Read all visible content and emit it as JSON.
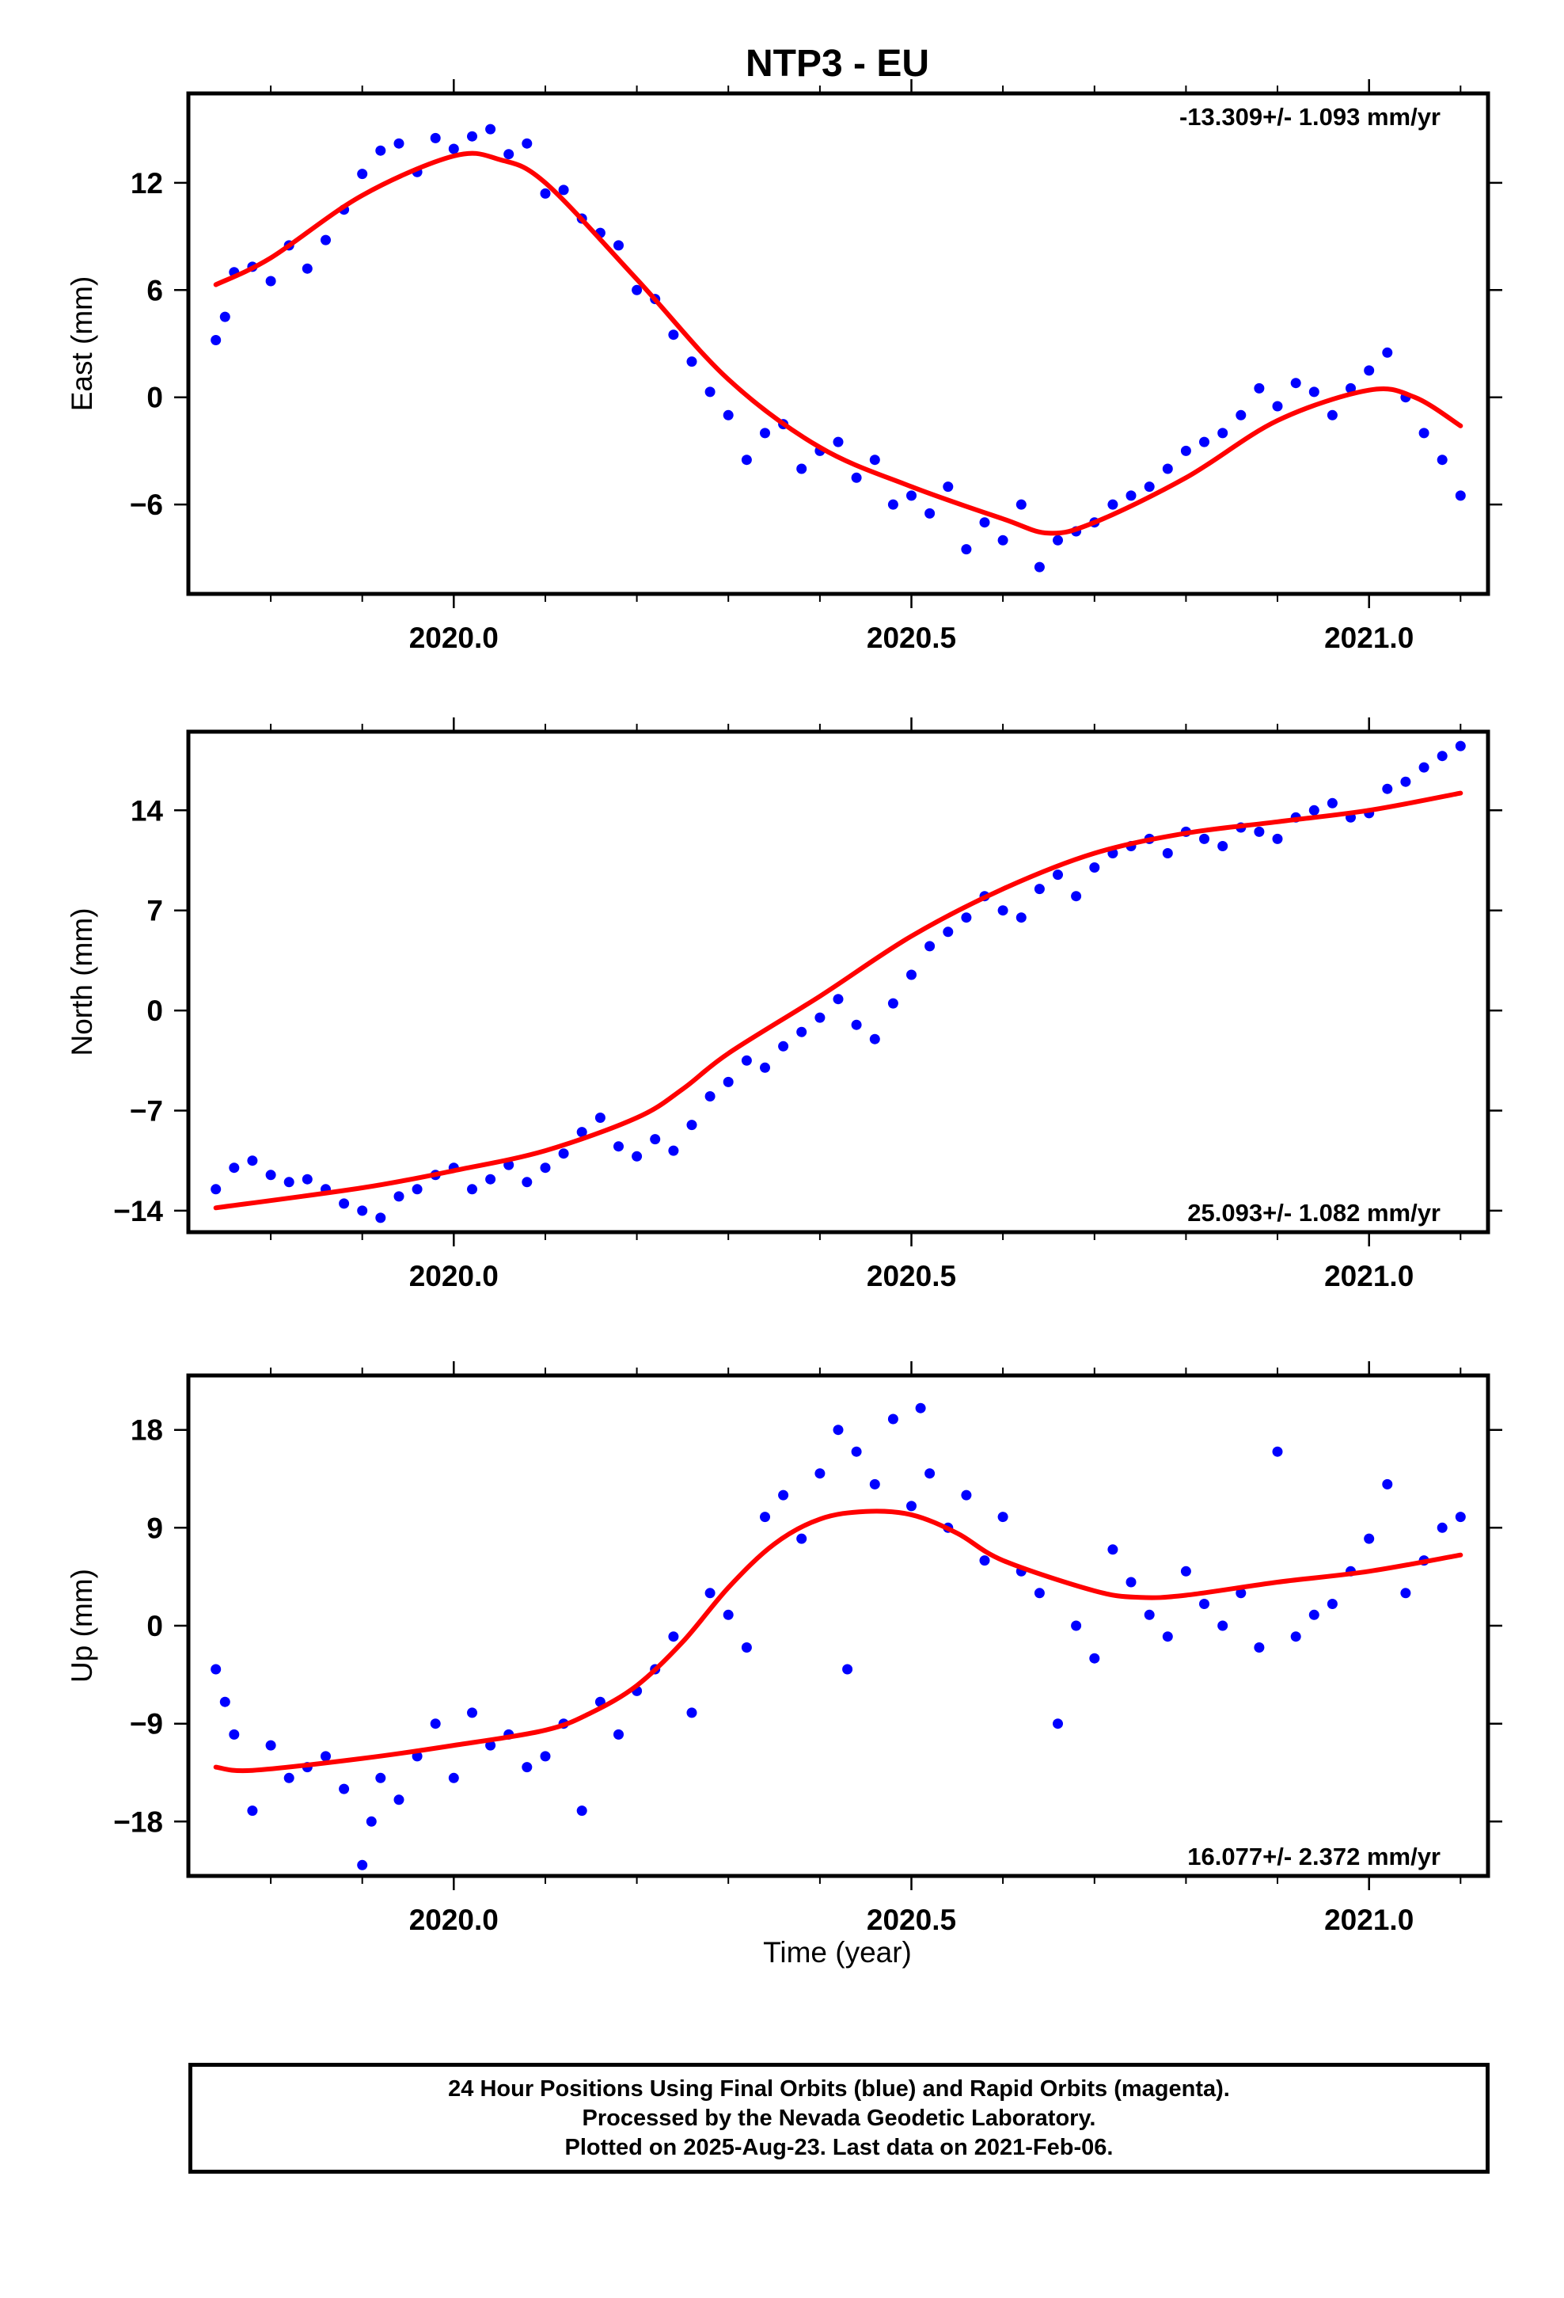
{
  "title": "NTP3 - EU",
  "xlabel": "Time (year)",
  "colors": {
    "points": "#0000ff",
    "fit": "#ff0000",
    "axes": "#000000"
  },
  "footer": {
    "line1": "24 Hour Positions Using Final Orbits (blue) and Rapid Orbits (magenta).",
    "line2": "Processed by the Nevada Geodetic Laboratory.",
    "line3": "Plotted on 2025-Aug-23. Last data on 2021-Feb-06."
  },
  "chart_data": [
    {
      "type": "scatter",
      "ylabel": "East (mm)",
      "rate_label": "-13.309+/- 1.093 mm/yr",
      "rate_position": "top-right",
      "xlim": [
        2019.71,
        2021.13
      ],
      "ylim": [
        -11,
        17
      ],
      "xticks": [
        2020.0,
        2020.5,
        2021.0
      ],
      "xtick_labels": [
        "2020.0",
        "2020.5",
        "2021.0"
      ],
      "yticks": [
        12,
        6,
        0,
        -6
      ],
      "ytick_labels": [
        "12",
        "6",
        "0",
        "−6"
      ],
      "fit": {
        "x": [
          2019.74,
          2019.8,
          2019.9,
          2020.0,
          2020.05,
          2020.1,
          2020.2,
          2020.3,
          2020.4,
          2020.5,
          2020.6,
          2020.65,
          2020.7,
          2020.8,
          2020.9,
          2021.0,
          2021.05,
          2021.1
        ],
        "y": [
          6.3,
          7.8,
          11.3,
          13.5,
          13.3,
          12.0,
          6.6,
          1.0,
          -2.8,
          -5.0,
          -6.8,
          -7.6,
          -7.0,
          -4.5,
          -1.3,
          0.4,
          0.0,
          -1.6
        ]
      },
      "points": {
        "x": [
          2019.74,
          2019.75,
          2019.76,
          2019.78,
          2019.8,
          2019.82,
          2019.84,
          2019.86,
          2019.88,
          2019.9,
          2019.92,
          2019.94,
          2019.96,
          2019.98,
          2020.0,
          2020.02,
          2020.04,
          2020.06,
          2020.08,
          2020.1,
          2020.12,
          2020.14,
          2020.16,
          2020.18,
          2020.2,
          2020.22,
          2020.24,
          2020.26,
          2020.28,
          2020.3,
          2020.32,
          2020.34,
          2020.36,
          2020.38,
          2020.4,
          2020.42,
          2020.44,
          2020.46,
          2020.48,
          2020.5,
          2020.52,
          2020.54,
          2020.56,
          2020.58,
          2020.6,
          2020.62,
          2020.64,
          2020.66,
          2020.68,
          2020.7,
          2020.72,
          2020.74,
          2020.76,
          2020.78,
          2020.8,
          2020.82,
          2020.84,
          2020.86,
          2020.88,
          2020.9,
          2020.92,
          2020.94,
          2020.96,
          2020.98,
          2021.0,
          2021.02,
          2021.04,
          2021.06,
          2021.08,
          2021.1
        ],
        "y": [
          3.2,
          4.5,
          7.0,
          7.3,
          6.5,
          8.5,
          7.2,
          8.8,
          10.5,
          12.5,
          13.8,
          14.2,
          12.6,
          14.5,
          13.9,
          14.6,
          15.0,
          13.6,
          14.2,
          11.4,
          11.6,
          10.0,
          9.2,
          8.5,
          6.0,
          5.5,
          3.5,
          2.0,
          0.3,
          -1.0,
          -3.5,
          -2.0,
          -1.5,
          -4.0,
          -3.0,
          -2.5,
          -4.5,
          -3.5,
          -6.0,
          -5.5,
          -6.5,
          -5.0,
          -8.5,
          -7.0,
          -8.0,
          -6.0,
          -9.5,
          -8.0,
          -7.5,
          -7.0,
          -6.0,
          -5.5,
          -5.0,
          -4.0,
          -3.0,
          -2.5,
          -2.0,
          -1.0,
          0.5,
          -0.5,
          0.8,
          0.3,
          -1.0,
          0.5,
          1.5,
          2.5,
          0.0,
          -2.0,
          -3.5,
          -5.5
        ]
      }
    },
    {
      "type": "scatter",
      "ylabel": "North (mm)",
      "rate_label": "25.093+/- 1.082 mm/yr",
      "rate_position": "bottom-right",
      "xlim": [
        2019.71,
        2021.13
      ],
      "ylim": [
        -15.5,
        19.5
      ],
      "xticks": [
        2020.0,
        2020.5,
        2021.0
      ],
      "xtick_labels": [
        "2020.0",
        "2020.5",
        "2021.0"
      ],
      "yticks": [
        14,
        7,
        0,
        -7,
        -14
      ],
      "ytick_labels": [
        "14",
        "7",
        "0",
        "−7",
        "−14"
      ],
      "fit": {
        "x": [
          2019.74,
          2019.9,
          2020.0,
          2020.1,
          2020.2,
          2020.25,
          2020.3,
          2020.4,
          2020.5,
          2020.6,
          2020.7,
          2020.8,
          2020.9,
          2021.0,
          2021.1
        ],
        "y": [
          -13.8,
          -12.4,
          -11.2,
          -9.8,
          -7.5,
          -5.5,
          -3.0,
          1.0,
          5.2,
          8.5,
          11.0,
          12.4,
          13.2,
          14.0,
          15.2
        ]
      },
      "points": {
        "x": [
          2019.74,
          2019.76,
          2019.78,
          2019.8,
          2019.82,
          2019.84,
          2019.86,
          2019.88,
          2019.9,
          2019.92,
          2019.94,
          2019.96,
          2019.98,
          2020.0,
          2020.02,
          2020.04,
          2020.06,
          2020.08,
          2020.1,
          2020.12,
          2020.14,
          2020.16,
          2020.18,
          2020.2,
          2020.22,
          2020.24,
          2020.26,
          2020.28,
          2020.3,
          2020.32,
          2020.34,
          2020.36,
          2020.38,
          2020.4,
          2020.42,
          2020.44,
          2020.46,
          2020.48,
          2020.5,
          2020.52,
          2020.54,
          2020.56,
          2020.58,
          2020.6,
          2020.62,
          2020.64,
          2020.66,
          2020.68,
          2020.7,
          2020.72,
          2020.74,
          2020.76,
          2020.78,
          2020.8,
          2020.82,
          2020.84,
          2020.86,
          2020.88,
          2020.9,
          2020.92,
          2020.94,
          2020.96,
          2020.98,
          2021.0,
          2021.02,
          2021.04,
          2021.06,
          2021.08,
          2021.1
        ],
        "y": [
          -12.5,
          -11.0,
          -10.5,
          -11.5,
          -12.0,
          -11.8,
          -12.5,
          -13.5,
          -14.0,
          -14.5,
          -13.0,
          -12.5,
          -11.5,
          -11.0,
          -12.5,
          -11.8,
          -10.8,
          -12.0,
          -11.0,
          -10.0,
          -8.5,
          -7.5,
          -9.5,
          -10.2,
          -9.0,
          -9.8,
          -8.0,
          -6.0,
          -5.0,
          -3.5,
          -4.0,
          -2.5,
          -1.5,
          -0.5,
          0.8,
          -1.0,
          -2.0,
          0.5,
          2.5,
          4.5,
          5.5,
          6.5,
          8.0,
          7.0,
          6.5,
          8.5,
          9.5,
          8.0,
          10.0,
          11.0,
          11.5,
          12.0,
          11.0,
          12.5,
          12.0,
          11.5,
          12.8,
          12.5,
          12.0,
          13.5,
          14.0,
          14.5,
          13.5,
          13.8,
          15.5,
          16.0,
          17.0,
          17.8,
          18.5
        ]
      }
    },
    {
      "type": "scatter",
      "ylabel": "Up (mm)",
      "rate_label": "16.077+/- 2.372 mm/yr",
      "rate_position": "bottom-right",
      "xlim": [
        2019.71,
        2021.13
      ],
      "ylim": [
        -23,
        23
      ],
      "xticks": [
        2020.0,
        2020.5,
        2021.0
      ],
      "xtick_labels": [
        "2020.0",
        "2020.5",
        "2021.0"
      ],
      "yticks": [
        18,
        9,
        0,
        -9,
        -18
      ],
      "ytick_labels": [
        "18",
        "9",
        "0",
        "−9",
        "−18"
      ],
      "fit": {
        "x": [
          2019.74,
          2019.78,
          2019.9,
          2020.0,
          2020.1,
          2020.15,
          2020.2,
          2020.25,
          2020.3,
          2020.35,
          2020.4,
          2020.45,
          2020.5,
          2020.55,
          2020.6,
          2020.7,
          2020.75,
          2020.8,
          2020.9,
          2021.0,
          2021.1
        ],
        "y": [
          -13,
          -13.3,
          -12.2,
          -11,
          -9.6,
          -8,
          -5.5,
          -1.5,
          3.5,
          7.5,
          9.8,
          10.5,
          10.2,
          8.5,
          6,
          3.2,
          2.6,
          2.8,
          4,
          5,
          6.5
        ]
      },
      "points": {
        "x": [
          2019.74,
          2019.75,
          2019.76,
          2019.78,
          2019.8,
          2019.82,
          2019.84,
          2019.86,
          2019.88,
          2019.9,
          2019.91,
          2019.92,
          2019.94,
          2019.96,
          2019.98,
          2020.0,
          2020.02,
          2020.04,
          2020.06,
          2020.08,
          2020.1,
          2020.12,
          2020.14,
          2020.16,
          2020.18,
          2020.2,
          2020.22,
          2020.24,
          2020.26,
          2020.28,
          2020.3,
          2020.32,
          2020.34,
          2020.36,
          2020.38,
          2020.4,
          2020.42,
          2020.43,
          2020.44,
          2020.46,
          2020.48,
          2020.5,
          2020.51,
          2020.52,
          2020.54,
          2020.56,
          2020.58,
          2020.6,
          2020.62,
          2020.64,
          2020.66,
          2020.68,
          2020.7,
          2020.72,
          2020.74,
          2020.76,
          2020.78,
          2020.8,
          2020.82,
          2020.84,
          2020.86,
          2020.88,
          2020.9,
          2020.92,
          2020.94,
          2020.96,
          2020.98,
          2021.0,
          2021.02,
          2021.04,
          2021.06,
          2021.08,
          2021.1
        ],
        "y": [
          -4,
          -7,
          -10,
          -17,
          -11,
          -14,
          -13,
          -12,
          -15,
          -22,
          -18,
          -14,
          -16,
          -12,
          -9,
          -14,
          -8,
          -11,
          -10,
          -13,
          -12,
          -9,
          -17,
          -7,
          -10,
          -6,
          -4,
          -1,
          -8,
          3,
          1,
          -2,
          10,
          12,
          8,
          14,
          18,
          -4,
          16,
          13,
          19,
          11,
          20,
          14,
          9,
          12,
          6,
          10,
          5,
          3,
          -9,
          0,
          -3,
          7,
          4,
          1,
          -1,
          5,
          2,
          0,
          3,
          -2,
          16,
          -1,
          1,
          2,
          5,
          8,
          13,
          3,
          6,
          9,
          10
        ]
      }
    }
  ]
}
